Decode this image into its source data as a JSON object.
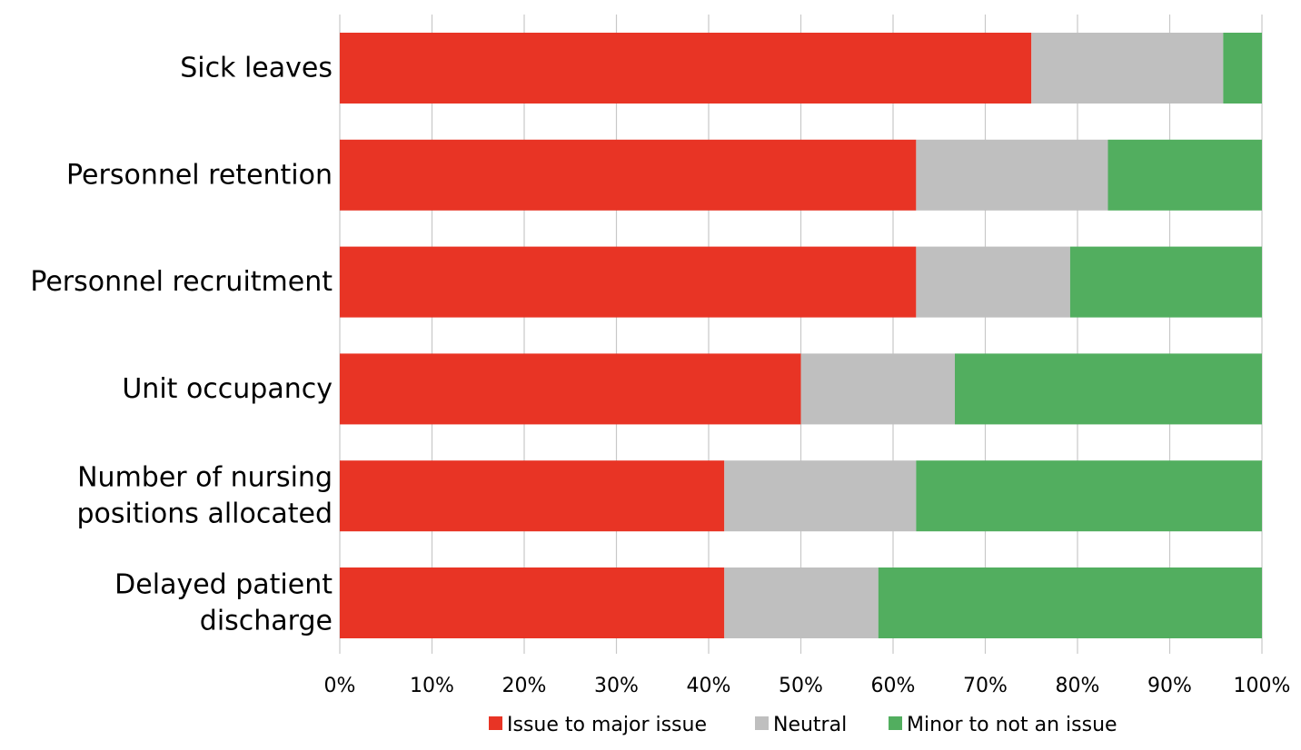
{
  "chart_data": {
    "type": "bar",
    "orientation": "horizontal",
    "stacked": "percent",
    "categories": [
      "Sick leaves",
      "Personnel retention",
      "Personnel recruitment",
      "Unit occupancy",
      "Number of nursing positions allocated",
      "Delayed patient discharge"
    ],
    "category_lines": [
      [
        "Sick leaves"
      ],
      [
        "Personnel retention"
      ],
      [
        "Personnel recruitment"
      ],
      [
        "Unit occupancy"
      ],
      [
        "Number of nursing",
        "positions allocated"
      ],
      [
        "Delayed patient",
        "discharge"
      ]
    ],
    "series": [
      {
        "name": "Issue to major issue",
        "color": "#e83425",
        "values": [
          75,
          62.5,
          62.5,
          50,
          41.7,
          41.7
        ]
      },
      {
        "name": "Neutral",
        "color": "#bfbfbf",
        "values": [
          20.8,
          20.8,
          16.7,
          16.7,
          20.8,
          16.7
        ]
      },
      {
        "name": "Minor to not an issue",
        "color": "#52ae5f",
        "values": [
          4.2,
          16.7,
          20.8,
          33.3,
          37.5,
          41.6
        ]
      }
    ],
    "xlim": [
      0,
      100
    ],
    "x_ticks": [
      "0%",
      "10%",
      "20%",
      "30%",
      "40%",
      "50%",
      "60%",
      "70%",
      "80%",
      "90%",
      "100%"
    ],
    "grid": true,
    "legend": "bottom"
  }
}
